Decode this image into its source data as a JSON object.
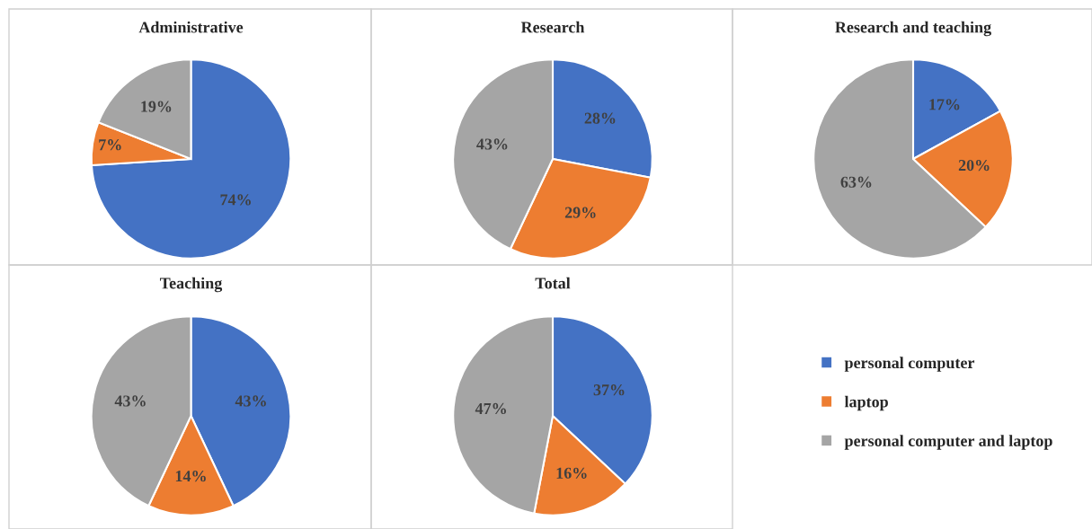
{
  "chart_data": [
    {
      "type": "pie",
      "title": "Administrative",
      "categories": [
        "personal computer",
        "laptop",
        "personal computer and laptop"
      ],
      "values": [
        74,
        7,
        19
      ],
      "value_labels": [
        "74%",
        "7%",
        "19%"
      ],
      "colors": [
        "#4472c4",
        "#ed7d31",
        "#a5a5a5"
      ],
      "legend": "right"
    },
    {
      "type": "pie",
      "title": "Research",
      "categories": [
        null,
        null,
        null
      ],
      "values": [
        28,
        29,
        43
      ],
      "value_labels": [
        "28%",
        "29%",
        "43%"
      ],
      "colors": [
        "#4472c4",
        "#ed7d31",
        "#a5a5a5"
      ]
    },
    {
      "type": "pie",
      "title": "Research and teaching",
      "categories": [
        null,
        null,
        null
      ],
      "values": [
        17,
        20,
        63
      ],
      "value_labels": [
        "17%",
        "20%",
        "63%"
      ],
      "colors": [
        "#4472c4",
        "#ed7d31",
        "#a5a5a5"
      ]
    },
    {
      "type": "pie",
      "title": "Teaching",
      "categories": [
        null,
        null,
        null
      ],
      "values": [
        43,
        14,
        43
      ],
      "value_labels": [
        "43%",
        "14%",
        "43%"
      ],
      "colors": [
        "#4472c4",
        "#ed7d31",
        "#a5a5a5"
      ]
    },
    {
      "type": "pie",
      "title": "Total",
      "categories": [
        null,
        null,
        null
      ],
      "values": [
        37,
        16,
        47
      ],
      "value_labels": [
        "37%",
        "16%",
        "47%"
      ],
      "colors": [
        "#4472c4",
        "#ed7d31",
        "#a5a5a5"
      ]
    }
  ]
}
